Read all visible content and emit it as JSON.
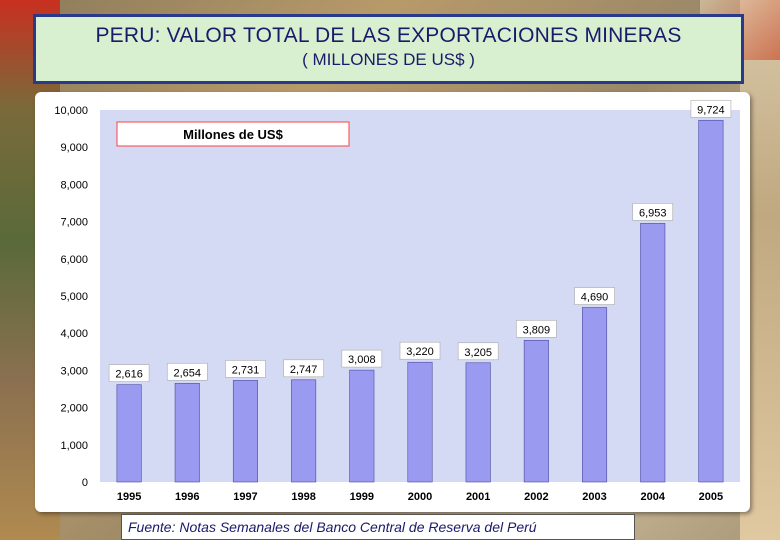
{
  "title": {
    "line1": "PERU: VALOR TOTAL DE LAS EXPORTACIONES MINERAS",
    "line2": "( MILLONES DE US$ )"
  },
  "chart_data": {
    "type": "bar",
    "legend_label": "Millones de US$",
    "categories": [
      "1995",
      "1996",
      "1997",
      "1998",
      "1999",
      "2000",
      "2001",
      "2002",
      "2003",
      "2004",
      "2005"
    ],
    "values": [
      2616,
      2654,
      2731,
      2747,
      3008,
      3220,
      3205,
      3809,
      4690,
      6953,
      9724
    ],
    "data_labels": [
      "2,616",
      "2,654",
      "2,731",
      "2,747",
      "3,008",
      "3,220",
      "3,205",
      "3,809",
      "4,690",
      "6,953",
      "9,724"
    ],
    "y_ticks": [
      "0",
      "1,000",
      "2,000",
      "3,000",
      "4,000",
      "5,000",
      "6,000",
      "7,000",
      "8,000",
      "9,000",
      "10,000"
    ],
    "ylim": [
      0,
      10000
    ],
    "grid": false,
    "legend_position": "top-left",
    "colors": {
      "bar": "#9a9af0",
      "bar_stroke": "#4a4aa0",
      "plot_bg": "#d4daf4"
    }
  },
  "source": "Fuente: Notas Semanales del Banco Central de Reserva del Perú"
}
